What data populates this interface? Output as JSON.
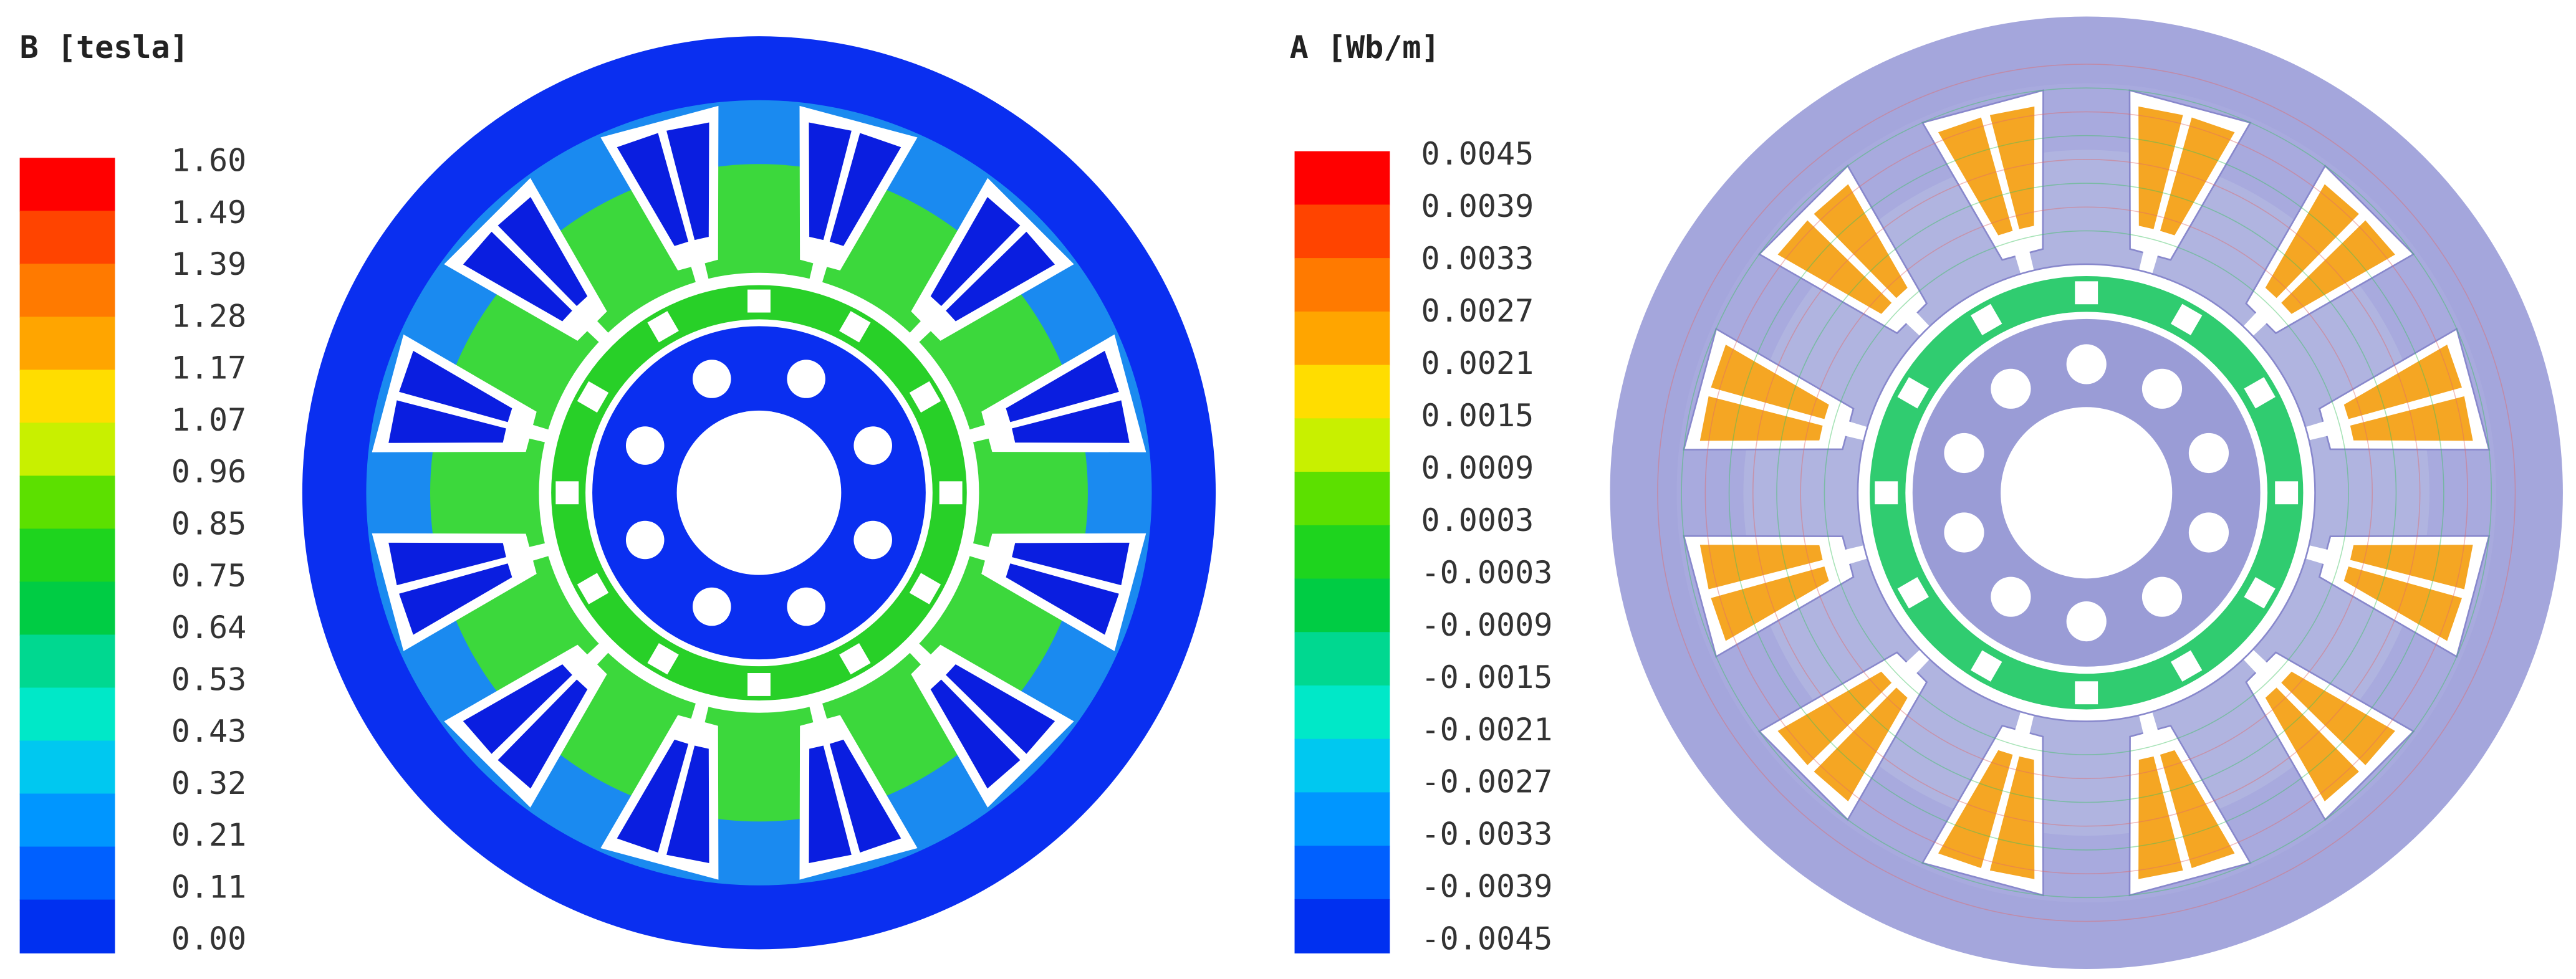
{
  "panels": [
    {
      "title": "B [tesla]",
      "legend_labels": [
        "1.60",
        "1.49",
        "1.39",
        "1.28",
        "1.17",
        "1.07",
        "0.96",
        "0.85",
        "0.75",
        "0.64",
        "0.53",
        "0.43",
        "0.32",
        "0.21",
        "0.11",
        "0.00"
      ]
    },
    {
      "title": "A [Wb/m]",
      "legend_labels": [
        "0.0045",
        "0.0039",
        "0.0033",
        "0.0027",
        "0.0021",
        "0.0015",
        "0.0009",
        "0.0003",
        "-0.0003",
        "-0.0009",
        "-0.0015",
        "-0.0021",
        "-0.0027",
        "-0.0033",
        "-0.0039",
        "-0.0045"
      ]
    }
  ]
}
